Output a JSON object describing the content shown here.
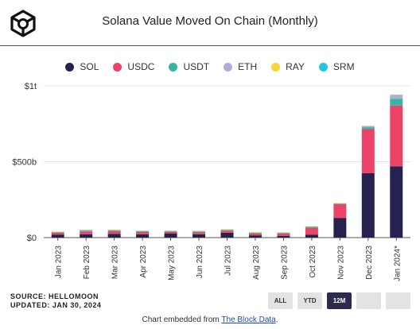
{
  "header": {
    "title": "Solana Value Moved On Chain (Monthly)",
    "logo_icon": "the-block-cube-logo"
  },
  "legend": [
    {
      "name": "SOL",
      "color": "#26224f"
    },
    {
      "name": "USDC",
      "color": "#ec4468"
    },
    {
      "name": "USDT",
      "color": "#35b5a3"
    },
    {
      "name": "ETH",
      "color": "#b3aadc"
    },
    {
      "name": "RAY",
      "color": "#f7d63c"
    },
    {
      "name": "SRM",
      "color": "#21c6e0"
    }
  ],
  "chart_data": {
    "type": "bar",
    "stacked": true,
    "title": "Solana Value Moved On Chain (Monthly)",
    "xlabel": "",
    "ylabel": "",
    "y_unit": "USD",
    "ylim": [
      0,
      1000
    ],
    "y_ticks": [
      {
        "value": 0,
        "label": "$0"
      },
      {
        "value": 500,
        "label": "$500b"
      },
      {
        "value": 1000,
        "label": "$1t"
      }
    ],
    "grid": true,
    "legend_position": "top",
    "categories": [
      "Jan 2023",
      "Feb 2023",
      "Mar 2023",
      "Apr 2023",
      "May 2023",
      "Jun 2023",
      "Jul 2023",
      "Aug 2023",
      "Sep 2023",
      "Oct 2023",
      "Nov 2023",
      "Dec 2023",
      "Jan 2024*"
    ],
    "series": [
      {
        "name": "SOL",
        "color": "#26224f",
        "values": [
          20,
          22,
          25,
          22,
          28,
          22,
          32,
          15,
          12,
          20,
          130,
          425,
          470
        ]
      },
      {
        "name": "USDC",
        "color": "#ec4468",
        "values": [
          12,
          18,
          18,
          15,
          10,
          12,
          14,
          12,
          14,
          45,
          90,
          290,
          400
        ]
      },
      {
        "name": "USDT",
        "color": "#35b5a3",
        "values": [
          4,
          6,
          6,
          5,
          4,
          6,
          5,
          5,
          5,
          6,
          4,
          12,
          45
        ]
      },
      {
        "name": "ETH",
        "color": "#b3aadc",
        "values": [
          3,
          4,
          3,
          3,
          3,
          3,
          3,
          3,
          2,
          3,
          3,
          8,
          25
        ]
      },
      {
        "name": "RAY",
        "color": "#f7d63c",
        "values": [
          1,
          2,
          1,
          1,
          1,
          3,
          2,
          1,
          2,
          1,
          1,
          2,
          3
        ]
      },
      {
        "name": "SRM",
        "color": "#21c6e0",
        "values": [
          0,
          0,
          0,
          0,
          0,
          0,
          0,
          0,
          0,
          0,
          0,
          0,
          0
        ]
      }
    ]
  },
  "footer": {
    "source": "SOURCE: HELLOMOON",
    "updated": "UPDATED: JAN 30, 2024",
    "ranges": [
      {
        "label": "ALL",
        "active": false
      },
      {
        "label": "YTD",
        "active": false
      },
      {
        "label": "12M",
        "active": true
      },
      {
        "label": "",
        "active": false
      },
      {
        "label": "",
        "active": false
      }
    ],
    "embed_prefix": "Chart embedded from ",
    "embed_link": "The Block Data",
    "embed_suffix": "."
  }
}
